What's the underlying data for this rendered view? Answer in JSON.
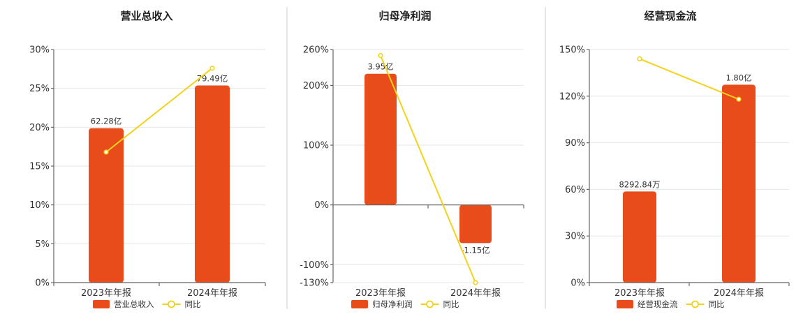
{
  "chart_data": [
    {
      "type": "bar",
      "title": "营业总收入",
      "categories": [
        "2023年年报",
        "2024年年报"
      ],
      "bar_values": [
        62.28,
        79.49
      ],
      "bar_labels": [
        "62.28亿",
        "79.49亿"
      ],
      "line_values": [
        16.8,
        27.6
      ],
      "y_ticks": [
        0,
        5,
        10,
        15,
        20,
        25,
        30
      ],
      "y_tick_labels": [
        "0%",
        "5%",
        "10%",
        "15%",
        "20%",
        "25%",
        "30%"
      ],
      "ylim": [
        0,
        30
      ],
      "bar_scale_max": 94.0,
      "legend": [
        "营业总收入",
        "同比"
      ]
    },
    {
      "type": "bar",
      "title": "归母净利润",
      "categories": [
        "2023年年报",
        "2024年年报"
      ],
      "bar_values": [
        3.95,
        -1.15
      ],
      "bar_labels": [
        "3.95亿",
        "-1.15亿"
      ],
      "line_values": [
        250,
        -130
      ],
      "y_ticks": [
        -130,
        -100,
        0,
        100,
        200,
        260
      ],
      "y_tick_labels": [
        "-130%",
        "-100%",
        "0%",
        "100%",
        "200%",
        "260%"
      ],
      "ylim": [
        -130,
        260
      ],
      "bar_scale_max": 4.68,
      "legend": [
        "归母净利润",
        "同比"
      ]
    },
    {
      "type": "bar",
      "title": "经营现金流",
      "categories": [
        "2023年年报",
        "2024年年报"
      ],
      "bar_values": [
        0.829284,
        1.8
      ],
      "bar_labels": [
        "8292.84万",
        "1.80亿"
      ],
      "line_values": [
        144,
        118
      ],
      "y_ticks": [
        0,
        30,
        60,
        90,
        120,
        150
      ],
      "y_tick_labels": [
        "0%",
        "30%",
        "60%",
        "90%",
        "120%",
        "150%"
      ],
      "ylim": [
        0,
        150
      ],
      "bar_scale_max": 2.12,
      "legend": [
        "经营现金流",
        "同比"
      ]
    }
  ],
  "colors": {
    "bar": "#e84c1a",
    "line": "#f2d21b",
    "marker_fill": "#ffffff"
  }
}
